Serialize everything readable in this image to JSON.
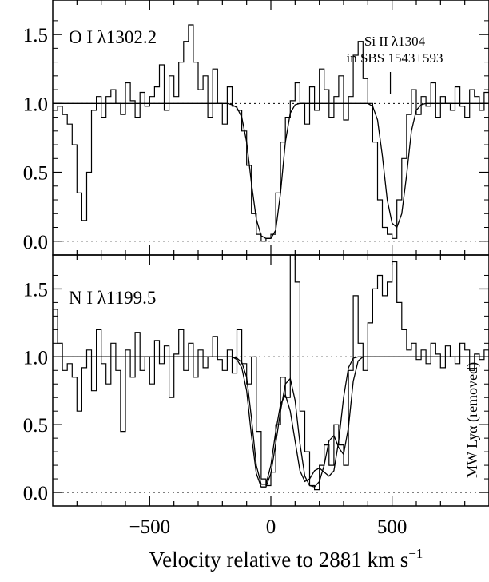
{
  "chart_data": [
    {
      "type": "line",
      "panel_label": "O I λ1302.2",
      "annotation_lines": [
        "Si II λ1304",
        "in SBS 1543+593"
      ],
      "annotation_marker_x": 493,
      "xlim": [
        -900,
        900
      ],
      "ylim": [
        -0.1,
        1.75
      ],
      "yticks": [
        "0.0",
        "0.5",
        "1.0",
        "1.5"
      ],
      "ytick_values": [
        0.0,
        0.5,
        1.0,
        1.5
      ],
      "continuum": 1.0,
      "zero_level": 0.0,
      "series": [
        {
          "style": "histogram",
          "x": [
            -900,
            -880,
            -860,
            -840,
            -820,
            -800,
            -780,
            -760,
            -740,
            -720,
            -700,
            -680,
            -660,
            -640,
            -620,
            -600,
            -580,
            -560,
            -540,
            -520,
            -500,
            -480,
            -460,
            -440,
            -420,
            -400,
            -380,
            -360,
            -340,
            -320,
            -300,
            -280,
            -260,
            -240,
            -220,
            -200,
            -180,
            -160,
            -140,
            -120,
            -100,
            -80,
            -60,
            -40,
            -20,
            0,
            20,
            40,
            60,
            80,
            100,
            120,
            140,
            160,
            180,
            200,
            220,
            240,
            260,
            280,
            300,
            320,
            340,
            360,
            380,
            400,
            420,
            440,
            460,
            480,
            500,
            520,
            540,
            560,
            580,
            600,
            620,
            640,
            660,
            680,
            700,
            720,
            740,
            760,
            780,
            800,
            820,
            840,
            860,
            880
          ],
          "y": [
            0.95,
            0.98,
            0.92,
            0.85,
            0.7,
            0.35,
            0.15,
            0.5,
            0.95,
            1.05,
            0.9,
            1.05,
            1.1,
            1.0,
            0.92,
            1.15,
            1.02,
            0.9,
            1.08,
            0.98,
            1.05,
            1.12,
            1.28,
            0.95,
            1.2,
            1.05,
            1.3,
            1.45,
            1.57,
            1.3,
            1.1,
            1.2,
            0.9,
            1.25,
            1.0,
            0.85,
            1.12,
            0.98,
            0.95,
            0.8,
            0.55,
            0.2,
            0.05,
            0.0,
            0.02,
            0.05,
            0.35,
            0.72,
            0.9,
            1.02,
            1.15,
            1.0,
            0.85,
            1.12,
            0.95,
            1.25,
            1.1,
            0.9,
            1.05,
            1.2,
            0.88,
            1.05,
            1.35,
            1.45,
            1.18,
            1.0,
            0.72,
            0.3,
            0.1,
            0.05,
            0.02,
            0.3,
            0.6,
            0.92,
            1.1,
            0.92,
            1.05,
            0.98,
            1.15,
            0.9,
            1.05,
            1.0,
            0.95,
            1.12,
            0.98,
            0.9,
            1.1,
            1.05,
            0.95,
            1.08
          ]
        },
        {
          "style": "model",
          "x": [
            -900,
            -880,
            -860,
            -840,
            -820,
            -800,
            -780,
            -760,
            -740,
            -720,
            -700,
            -680,
            -660,
            -640,
            -620,
            -600,
            -580,
            -560,
            -540,
            -520,
            -500,
            -480,
            -460,
            -440,
            -420,
            -400,
            -380,
            -360,
            -340,
            -320,
            -300,
            -280,
            -260,
            -240,
            -220,
            -200,
            -180,
            -160,
            -140,
            -120,
            -100,
            -80,
            -60,
            -40,
            -20,
            0,
            20,
            40,
            60,
            80,
            100,
            120,
            140,
            160,
            180,
            200,
            220,
            240,
            260,
            280,
            300,
            320,
            340,
            360,
            380,
            400,
            420,
            440,
            460,
            480,
            500,
            520,
            540,
            560,
            580,
            600,
            620,
            640,
            660,
            680,
            700,
            720,
            740,
            760,
            780,
            800,
            820,
            840,
            860,
            880,
            900
          ],
          "y": [
            1,
            1,
            1,
            1,
            1,
            1,
            1,
            1,
            1,
            1,
            1,
            1,
            1,
            1,
            1,
            1,
            1,
            1,
            1,
            1,
            1,
            1,
            1,
            1,
            1,
            1,
            1,
            1,
            1,
            1,
            1,
            1,
            1,
            1,
            1,
            1,
            1,
            0.99,
            0.97,
            0.9,
            0.72,
            0.42,
            0.16,
            0.04,
            0.02,
            0.02,
            0.08,
            0.35,
            0.72,
            0.93,
            0.99,
            1,
            1,
            1,
            1,
            1,
            1,
            1,
            1,
            1,
            1,
            1,
            1,
            1,
            1,
            1,
            0.98,
            0.88,
            0.62,
            0.3,
            0.13,
            0.1,
            0.2,
            0.48,
            0.8,
            0.95,
            0.99,
            1,
            1,
            1,
            1,
            1,
            1,
            1,
            1,
            1,
            1,
            1,
            1,
            1,
            1
          ]
        }
      ]
    },
    {
      "type": "line",
      "panel_label": "N I λ1199.5",
      "side_annotation": "MW Lyα  (removed)",
      "xlim": [
        -900,
        900
      ],
      "ylim": [
        -0.1,
        1.75
      ],
      "yticks": [
        "0.0",
        "0.5",
        "1.0",
        "1.5"
      ],
      "ytick_values": [
        0.0,
        0.5,
        1.0,
        1.5
      ],
      "xticks": [
        "−500",
        "0",
        "500"
      ],
      "xtick_values": [
        -500,
        0,
        500
      ],
      "xlabel": "Velocity relative to 2881 km s",
      "xlabel_sup": "−1",
      "continuum": 1.0,
      "zero_level": 0.0,
      "series": [
        {
          "style": "histogram",
          "x": [
            -900,
            -880,
            -860,
            -840,
            -820,
            -800,
            -780,
            -760,
            -740,
            -720,
            -700,
            -680,
            -660,
            -640,
            -620,
            -600,
            -580,
            -560,
            -540,
            -520,
            -500,
            -480,
            -460,
            -440,
            -420,
            -400,
            -380,
            -360,
            -340,
            -320,
            -300,
            -280,
            -260,
            -240,
            -220,
            -200,
            -180,
            -160,
            -140,
            -120,
            -100,
            -80,
            -60,
            -40,
            -20,
            0,
            20,
            40,
            60,
            80,
            100,
            120,
            140,
            160,
            180,
            200,
            220,
            240,
            260,
            280,
            300,
            320,
            340,
            360,
            380,
            400,
            420,
            440,
            460,
            480,
            500,
            520,
            540,
            560,
            580,
            600,
            620,
            640,
            660,
            680,
            700,
            720,
            740,
            760,
            780,
            800,
            820,
            840,
            860,
            880
          ],
          "y": [
            1.35,
            1.1,
            0.9,
            0.95,
            0.85,
            0.6,
            0.92,
            1.05,
            0.75,
            1.2,
            0.95,
            0.8,
            1.1,
            0.9,
            0.45,
            1.05,
            0.85,
            1.18,
            0.9,
            1.0,
            0.8,
            1.12,
            0.95,
            1.08,
            0.7,
            1.02,
            1.2,
            0.9,
            1.1,
            0.85,
            1.05,
            0.92,
            1.0,
            1.15,
            0.98,
            0.9,
            1.05,
            0.88,
            1.2,
            0.95,
            0.8,
            1.0,
            0.45,
            0.1,
            0.05,
            0.15,
            0.5,
            0.85,
            0.7,
            1.75,
            1.55,
            0.6,
            0.3,
            0.05,
            0.02,
            0.2,
            0.35,
            0.2,
            0.5,
            0.35,
            0.2,
            0.9,
            1.45,
            1.1,
            0.9,
            1.25,
            1.5,
            1.6,
            1.45,
            1.55,
            1.7,
            1.4,
            1.2,
            1.05,
            1.1,
            0.98,
            1.05,
            0.95,
            1.1,
            1.02,
            0.92,
            1.08,
            1.0,
            0.95,
            1.1,
            1.05,
            0.9,
            1.02,
            0.98,
            1.05
          ]
        },
        {
          "style": "model",
          "x": [
            -900,
            -880,
            -860,
            -840,
            -820,
            -800,
            -780,
            -760,
            -740,
            -720,
            -700,
            -680,
            -660,
            -640,
            -620,
            -600,
            -580,
            -560,
            -540,
            -520,
            -500,
            -480,
            -460,
            -440,
            -420,
            -400,
            -380,
            -360,
            -340,
            -320,
            -300,
            -280,
            -260,
            -240,
            -220,
            -200,
            -180,
            -160,
            -140,
            -120,
            -100,
            -80,
            -60,
            -40,
            -20,
            0,
            20,
            40,
            60,
            80,
            100,
            120,
            140,
            160,
            180,
            200,
            220,
            240,
            260,
            280,
            300,
            320,
            340,
            360,
            380,
            400,
            420,
            440,
            460,
            480,
            500,
            520,
            540,
            560,
            580,
            600,
            620,
            640,
            660,
            680,
            700,
            720,
            740,
            760,
            780,
            800,
            820,
            840,
            860,
            880,
            900
          ],
          "y": [
            1,
            1,
            1,
            1,
            1,
            1,
            1,
            1,
            1,
            1,
            1,
            1,
            1,
            1,
            1,
            1,
            1,
            1,
            1,
            1,
            1,
            1,
            1,
            1,
            1,
            1,
            1,
            1,
            1,
            1,
            1,
            1,
            1,
            1,
            1,
            1,
            1,
            1,
            0.99,
            0.96,
            0.85,
            0.55,
            0.2,
            0.06,
            0.06,
            0.2,
            0.45,
            0.65,
            0.72,
            0.6,
            0.38,
            0.16,
            0.08,
            0.1,
            0.16,
            0.18,
            0.15,
            0.12,
            0.16,
            0.38,
            0.7,
            0.92,
            0.99,
            1,
            1,
            1,
            1,
            1,
            1,
            1,
            1,
            1,
            1,
            1,
            1,
            1,
            1,
            1,
            1,
            1,
            1,
            1,
            1,
            1,
            1,
            1,
            1,
            1,
            1,
            1,
            1
          ]
        },
        {
          "style": "model",
          "x": [
            -900,
            -880,
            -860,
            -840,
            -820,
            -800,
            -780,
            -760,
            -740,
            -720,
            -700,
            -680,
            -660,
            -640,
            -620,
            -600,
            -580,
            -560,
            -540,
            -520,
            -500,
            -480,
            -460,
            -440,
            -420,
            -400,
            -380,
            -360,
            -340,
            -320,
            -300,
            -280,
            -260,
            -240,
            -220,
            -200,
            -180,
            -160,
            -140,
            -120,
            -100,
            -80,
            -60,
            -40,
            -20,
            0,
            20,
            40,
            60,
            80,
            100,
            120,
            140,
            160,
            180,
            200,
            220,
            240,
            260,
            280,
            300,
            320,
            340,
            360,
            380,
            400,
            420,
            440,
            460,
            480,
            500,
            520,
            540,
            560,
            580,
            600,
            620,
            640,
            660,
            680,
            700,
            720,
            740,
            760,
            780,
            800,
            820,
            840,
            860,
            880,
            900
          ],
          "y": [
            1,
            1,
            1,
            1,
            1,
            1,
            1,
            1,
            1,
            1,
            1,
            1,
            1,
            1,
            1,
            1,
            1,
            1,
            1,
            1,
            1,
            1,
            1,
            1,
            1,
            1,
            1,
            1,
            1,
            1,
            1,
            1,
            1,
            1,
            1,
            1,
            1,
            1,
            0.98,
            0.92,
            0.75,
            0.42,
            0.14,
            0.04,
            0.04,
            0.14,
            0.36,
            0.6,
            0.8,
            0.84,
            0.68,
            0.36,
            0.12,
            0.05,
            0.04,
            0.08,
            0.2,
            0.38,
            0.42,
            0.33,
            0.28,
            0.48,
            0.82,
            0.97,
            1,
            1,
            1,
            1,
            1,
            1,
            1,
            1,
            1,
            1,
            1,
            1,
            1,
            1,
            1,
            1,
            1,
            1,
            1,
            1,
            1,
            1,
            1,
            1,
            1,
            1,
            1
          ]
        }
      ]
    }
  ]
}
